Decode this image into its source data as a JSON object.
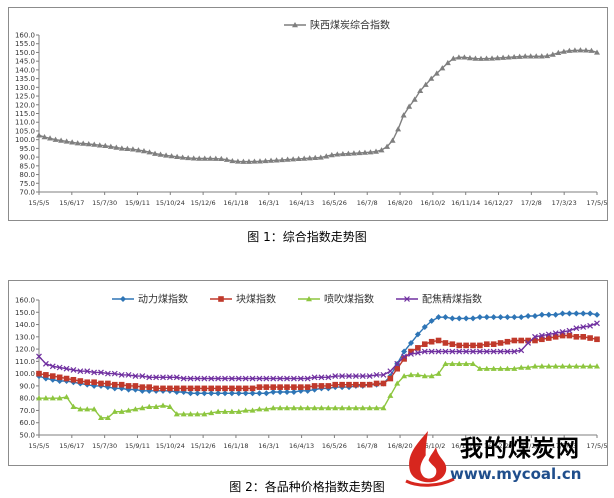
{
  "captions": {
    "fig1": "图 1：综合指数走势图",
    "fig2": "图 2：各品种价格指数走势图"
  },
  "watermark": {
    "name": "我的煤炭网",
    "url": "www.mycoal.cn"
  },
  "chart_data": [
    {
      "type": "line",
      "title": "",
      "xlabel": "",
      "ylabel": "",
      "ylim": [
        70,
        160
      ],
      "y_ticks": [
        "160.0",
        "155.0",
        "150.0",
        "145.0",
        "140.0",
        "135.0",
        "130.0",
        "125.0",
        "120.0",
        "115.0",
        "110.0",
        "105.0",
        "100.0",
        "95.0",
        "90.0",
        "85.0",
        "80.0",
        "75.0",
        "70.0"
      ],
      "x_tick_labels": [
        "15/5/5",
        "15/6/17",
        "15/7/30",
        "15/9/11",
        "15/10/24",
        "15/12/6",
        "16/1/18",
        "16/3/1",
        "16/4/13",
        "16/5/26",
        "16/7/8",
        "16/8/20",
        "16/10/2",
        "16/11/14",
        "16/12/27",
        "17/2/8",
        "17/3/23",
        "17/5/5"
      ],
      "legend_position": "top-center",
      "grid": false,
      "series": [
        {
          "name": "陕西煤炭综合指数",
          "color": "#7f7f7f",
          "marker": "triangle",
          "values": [
            102.5,
            101.5,
            100.8,
            100,
            99.5,
            99,
            98.5,
            98,
            97.8,
            97.5,
            97.2,
            96.8,
            96.5,
            96,
            95.5,
            95,
            94.8,
            94.5,
            94,
            93.5,
            92.8,
            92,
            91.5,
            91,
            90.6,
            90.2,
            89.8,
            89.5,
            89.3,
            89.2,
            89.2,
            89.2,
            89.1,
            89,
            88.5,
            87.8,
            87.5,
            87.4,
            87.4,
            87.5,
            87.6,
            87.8,
            88,
            88.2,
            88.4,
            88.6,
            88.8,
            89,
            89.2,
            89.4,
            89.6,
            89.8,
            90.5,
            91.2,
            91.6,
            91.8,
            92,
            92.2,
            92.4,
            92.6,
            92.8,
            93.2,
            94,
            96,
            99.5,
            106,
            114,
            119,
            123,
            128,
            131.5,
            135,
            138,
            141,
            144,
            146.5,
            147.2,
            147.2,
            146.8,
            146.5,
            146.4,
            146.5,
            146.6,
            146.8,
            147,
            147.2,
            147.4,
            147.6,
            147.8,
            147.8,
            147.8,
            147.8,
            148,
            148.8,
            149.8,
            150.5,
            151,
            151.2,
            151.3,
            151.2,
            151,
            150
          ]
        }
      ]
    },
    {
      "type": "line",
      "title": "",
      "xlabel": "",
      "ylabel": "",
      "ylim": [
        50,
        160
      ],
      "y_ticks": [
        "160.0",
        "150.0",
        "140.0",
        "130.0",
        "120.0",
        "110.0",
        "100.0",
        "90.0",
        "80.0",
        "70.0",
        "60.0",
        "50.0"
      ],
      "x_tick_labels": [
        "15/5/5",
        "15/6/17",
        "15/7/30",
        "15/9/11",
        "15/10/24",
        "15/12/6",
        "16/1/18",
        "16/3/1",
        "16/4/13",
        "16/5/26",
        "16/7/8",
        "16/8/20",
        "16/10/2",
        "16/11/14",
        "16/12/27",
        "17/2/8",
        "17/3/23",
        "17/5/5"
      ],
      "legend_position": "top",
      "grid": false,
      "series": [
        {
          "name": "动力煤指数",
          "color": "#2e75b6",
          "marker": "diamond",
          "values": [
            98,
            96,
            95,
            94,
            94,
            93,
            92,
            91,
            90,
            90,
            89,
            88,
            88,
            87,
            87,
            86,
            86,
            86,
            86,
            86,
            85,
            85,
            84,
            84,
            84,
            84,
            84,
            84,
            84,
            84,
            84,
            84,
            84,
            84,
            85,
            85,
            85,
            85,
            86,
            86,
            87,
            88,
            88,
            89,
            89,
            89,
            90,
            90,
            91,
            91,
            92,
            98,
            108,
            118,
            125,
            132,
            138,
            143,
            146,
            146,
            145,
            145,
            145,
            145,
            146,
            146,
            146,
            146,
            146,
            146,
            146,
            147,
            147,
            148,
            148,
            148,
            149,
            149,
            149,
            149,
            149,
            148
          ]
        },
        {
          "name": "块煤指数",
          "color": "#c0392b",
          "marker": "square",
          "values": [
            100,
            99,
            98,
            97,
            96,
            95,
            94,
            93,
            93,
            92,
            92,
            91,
            91,
            90,
            90,
            89,
            89,
            88,
            88,
            88,
            88,
            88,
            88,
            88,
            88,
            88,
            88,
            88,
            88,
            88,
            88,
            88,
            89,
            89,
            89,
            89,
            89,
            89,
            89,
            89,
            90,
            90,
            90,
            91,
            91,
            91,
            91,
            91,
            91,
            92,
            92,
            96,
            104,
            112,
            118,
            121,
            124,
            126,
            127,
            125,
            124,
            123,
            123,
            123,
            123,
            124,
            124,
            125,
            126,
            127,
            127,
            127,
            127,
            128,
            129,
            130,
            131,
            131,
            130,
            130,
            129,
            128
          ]
        },
        {
          "name": "喷吹煤指数",
          "color": "#8dc63f",
          "marker": "triangle",
          "values": [
            80,
            80,
            80,
            80,
            81,
            73,
            71,
            71,
            71,
            64,
            64,
            69,
            69,
            70,
            71,
            72,
            73,
            73,
            74,
            73,
            67,
            67,
            67,
            67,
            67,
            68,
            69,
            69,
            69,
            69,
            70,
            70,
            71,
            71,
            72,
            72,
            72,
            72,
            72,
            72,
            72,
            72,
            72,
            72,
            72,
            72,
            72,
            72,
            72,
            72,
            72,
            82,
            92,
            98,
            99,
            99,
            98,
            98,
            100,
            108,
            108,
            108,
            108,
            108,
            104,
            104,
            104,
            104,
            104,
            104,
            105,
            105,
            106,
            106,
            106,
            106,
            106,
            106,
            106,
            106,
            106,
            106
          ]
        },
        {
          "name": "配焦精煤指数",
          "color": "#7030a0",
          "marker": "x",
          "values": [
            114,
            108,
            106,
            105,
            104,
            103,
            102,
            102,
            101,
            101,
            100,
            100,
            99,
            99,
            98,
            98,
            97,
            97,
            97,
            97,
            97,
            96,
            96,
            96,
            96,
            96,
            96,
            96,
            96,
            96,
            96,
            96,
            96,
            96,
            96,
            96,
            96,
            96,
            96,
            96,
            97,
            97,
            97,
            98,
            98,
            98,
            98,
            98,
            98,
            99,
            99,
            102,
            108,
            114,
            116,
            117,
            118,
            118,
            118,
            118,
            118,
            118,
            118,
            118,
            118,
            118,
            118,
            118,
            118,
            118,
            119,
            125,
            130,
            131,
            132,
            133,
            134,
            135,
            137,
            138,
            139,
            141
          ]
        }
      ]
    }
  ]
}
